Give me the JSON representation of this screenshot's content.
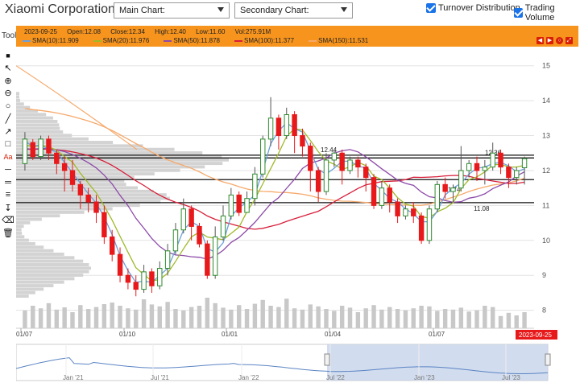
{
  "header": {
    "company": "Xiaomi Corporation",
    "main_chart": "Main Chart:",
    "secondary_chart": "Secondary Chart:",
    "turnover_label": "Turnover Distribution",
    "volume_label": "Trading Volume"
  },
  "tool_label": "Tool",
  "info": {
    "date": "2023-09-25",
    "open": "Open:12.08",
    "close": "Close:12.34",
    "high": "High:12.40",
    "low": "Low:11.60",
    "vol": "Vol:275.91M",
    "sma10": "SMA(10):11.909",
    "sma20": "SMA(20):11.976",
    "sma50": "SMA(50):11.878",
    "sma100": "SMA(100):11.377",
    "sma150": "SMA(150):11.531"
  },
  "colors": {
    "up": "#2e8b2e",
    "down": "#e8191b",
    "sma10": "#6ca0dc",
    "sma20": "#9fb92a",
    "sma50": "#8d4aa8",
    "sma100": "#d81e3a",
    "sma150": "#f6a96b",
    "orange": "#f7941d"
  },
  "toolbar_icons": [
    "square-icon",
    "cursor-icon",
    "zoom-in-icon",
    "zoom-out-icon",
    "circle-icon",
    "line-icon",
    "arrow-icon",
    "rectangle-icon",
    "text-icon",
    "horizontal-line-icon",
    "parallel-lines-icon",
    "fibonacci-icon",
    "vertical-arrow-icon",
    "eraser-icon",
    "trash-icon"
  ],
  "chart_data": {
    "type": "candlestick",
    "yticks": [
      "15",
      "14",
      "13",
      "12",
      "11",
      "10",
      "9",
      "8"
    ],
    "ylim": [
      7.6,
      15.5
    ],
    "xticks": [
      "01/07",
      "01/10",
      "01/01",
      "01/04",
      "01/07"
    ],
    "selected_date": "2023-09-25",
    "levels": [
      {
        "value": 12.44,
        "label": "12.44"
      },
      {
        "value": 12.36,
        "label": "12.36"
      },
      {
        "value": 11.74,
        "label": "11.74"
      },
      {
        "value": 11.08,
        "label": "11.08"
      }
    ],
    "candles": [
      [
        12.2,
        12.9,
        13.1,
        12.0
      ],
      [
        12.8,
        12.4,
        12.9,
        12.3
      ],
      [
        12.4,
        12.9,
        13.0,
        12.3
      ],
      [
        12.9,
        12.5,
        13.0,
        12.3
      ],
      [
        12.5,
        12.2,
        12.6,
        11.9
      ],
      [
        12.2,
        12.0,
        12.4,
        11.4
      ],
      [
        12.0,
        11.6,
        12.3,
        11.4
      ],
      [
        11.6,
        11.3,
        11.7,
        10.9
      ],
      [
        11.3,
        11.1,
        11.5,
        10.8
      ],
      [
        11.1,
        10.8,
        11.3,
        10.5
      ],
      [
        10.8,
        10.1,
        11.0,
        9.9
      ],
      [
        10.1,
        9.6,
        10.3,
        9.4
      ],
      [
        9.6,
        9.0,
        9.8,
        8.8
      ],
      [
        9.0,
        8.8,
        9.2,
        8.6
      ],
      [
        8.8,
        8.6,
        9.0,
        8.4
      ],
      [
        8.6,
        9.1,
        9.3,
        8.5
      ],
      [
        9.1,
        8.7,
        9.2,
        8.5
      ],
      [
        8.7,
        9.2,
        9.4,
        8.6
      ],
      [
        9.2,
        9.7,
        9.9,
        9.0
      ],
      [
        9.7,
        10.3,
        10.5,
        9.6
      ],
      [
        10.3,
        10.9,
        11.2,
        10.2
      ],
      [
        10.9,
        10.4,
        11.0,
        10.0
      ],
      [
        10.4,
        9.9,
        10.5,
        9.8
      ],
      [
        9.9,
        9.0,
        10.0,
        8.9
      ],
      [
        9.0,
        10.1,
        10.4,
        8.9
      ],
      [
        10.1,
        10.7,
        11.0,
        10.0
      ],
      [
        10.7,
        11.3,
        11.5,
        10.6
      ],
      [
        11.3,
        10.8,
        11.4,
        10.7
      ],
      [
        10.8,
        11.2,
        11.4,
        10.8
      ],
      [
        11.2,
        11.9,
        12.1,
        11.0
      ],
      [
        11.9,
        12.9,
        13.0,
        11.8
      ],
      [
        12.9,
        13.5,
        14.1,
        12.7
      ],
      [
        13.5,
        13.0,
        13.6,
        12.6
      ],
      [
        13.0,
        13.6,
        13.8,
        12.9
      ],
      [
        13.6,
        13.0,
        13.7,
        12.5
      ],
      [
        13.0,
        12.7,
        13.2,
        12.4
      ],
      [
        12.7,
        12.0,
        12.8,
        11.4
      ],
      [
        12.0,
        11.4,
        12.1,
        11.1
      ],
      [
        11.4,
        12.3,
        12.5,
        11.3
      ],
      [
        12.3,
        12.5,
        12.6,
        12.1
      ],
      [
        12.5,
        12.0,
        12.6,
        11.6
      ],
      [
        12.0,
        12.3,
        12.4,
        11.9
      ],
      [
        12.3,
        12.1,
        12.4,
        11.8
      ],
      [
        12.1,
        11.8,
        12.2,
        11.4
      ],
      [
        11.8,
        11.0,
        11.9,
        10.9
      ],
      [
        11.0,
        11.5,
        11.7,
        10.9
      ],
      [
        11.5,
        11.1,
        11.6,
        10.8
      ],
      [
        11.1,
        10.7,
        11.2,
        10.5
      ],
      [
        10.7,
        10.9,
        11.0,
        10.6
      ],
      [
        10.9,
        10.7,
        11.1,
        10.5
      ],
      [
        10.7,
        10.0,
        10.8,
        9.9
      ],
      [
        10.0,
        10.9,
        11.0,
        9.9
      ],
      [
        10.9,
        11.6,
        11.7,
        10.8
      ],
      [
        11.6,
        11.4,
        11.8,
        11.2
      ],
      [
        11.4,
        11.5,
        11.6,
        11.1
      ],
      [
        11.5,
        12.0,
        12.7,
        11.4
      ],
      [
        12.0,
        12.2,
        12.3,
        11.8
      ],
      [
        12.2,
        12.0,
        12.4,
        11.7
      ],
      [
        12.0,
        12.1,
        12.3,
        11.6
      ],
      [
        12.1,
        12.5,
        12.8,
        12.0
      ],
      [
        12.5,
        12.1,
        12.6,
        11.9
      ],
      [
        12.1,
        11.8,
        12.2,
        11.5
      ],
      [
        11.8,
        12.0,
        12.1,
        11.6
      ],
      [
        12.08,
        12.34,
        12.4,
        11.6
      ]
    ],
    "volume": [
      0.55,
      0.7,
      0.62,
      0.78,
      0.58,
      0.65,
      0.5,
      0.72,
      0.6,
      0.66,
      0.75,
      0.8,
      0.7,
      0.62,
      0.58,
      0.9,
      0.74,
      0.68,
      0.82,
      0.6,
      0.55,
      0.66,
      0.7,
      0.95,
      0.78,
      0.64,
      0.58,
      0.72,
      0.6,
      0.76,
      0.88,
      0.7,
      0.66,
      0.92,
      0.62,
      0.58,
      0.74,
      0.68,
      0.6,
      0.54,
      0.7,
      0.64,
      0.5,
      0.62,
      0.72,
      0.58,
      0.66,
      0.6,
      0.56,
      0.62,
      0.7,
      0.68,
      0.54,
      0.6,
      0.58,
      0.64,
      0.52,
      0.56,
      0.7,
      0.66,
      0.38,
      0.48,
      0.4,
      0.5
    ],
    "navigator_labels": [
      "Jan '21",
      "Jul '21",
      "Jan '22",
      "Jul '22",
      "Jan '23",
      "Jul '23"
    ]
  }
}
